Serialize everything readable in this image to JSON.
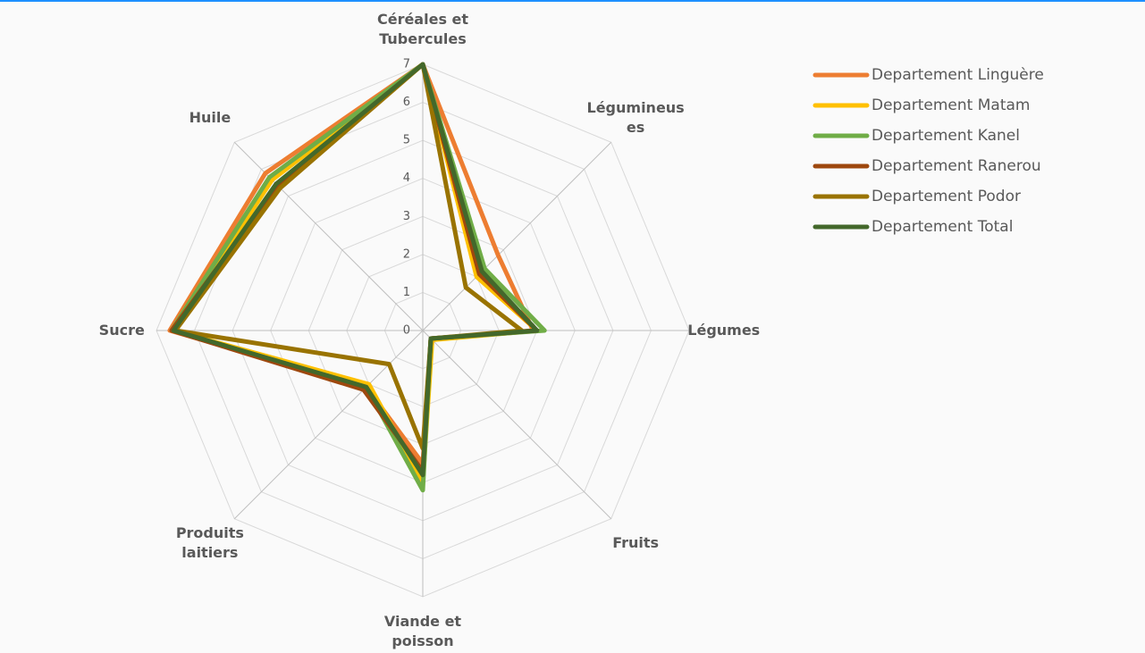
{
  "chart_data": {
    "type": "radar",
    "categories": [
      "Céréales et Tubercules",
      "Légumineuses",
      "Légumes",
      "Fruits",
      "Viande et poisson",
      "Produits laitiers",
      "Sucre",
      "Huile"
    ],
    "series": [
      {
        "name": "Departement Linguère",
        "color": "#ed7d31",
        "values": [
          7,
          2.8,
          2.9,
          0.3,
          3.5,
          2.1,
          6.65,
          5.85
        ]
      },
      {
        "name": "Departement Matam",
        "color": "#ffc000",
        "values": [
          7,
          2.0,
          3.0,
          0.35,
          4.0,
          2.0,
          6.55,
          5.6
        ]
      },
      {
        "name": "Departement Kanel",
        "color": "#70ad47",
        "values": [
          7,
          2.3,
          3.2,
          0.3,
          4.2,
          2.1,
          6.6,
          5.7
        ]
      },
      {
        "name": "Departement Ranerou",
        "color": "#9e480e",
        "values": [
          7,
          2.1,
          3.0,
          0.3,
          3.7,
          2.2,
          6.6,
          5.4
        ]
      },
      {
        "name": "Departement Podor",
        "color": "#997300",
        "values": [
          7,
          1.6,
          2.6,
          0.3,
          3.1,
          1.25,
          6.5,
          5.3
        ]
      },
      {
        "name": "Departement Total",
        "color": "#43682b",
        "values": [
          7,
          2.2,
          3.0,
          0.3,
          3.8,
          2.1,
          6.55,
          5.45
        ]
      }
    ],
    "ylim": [
      0,
      7
    ],
    "yticks": [
      0,
      1,
      2,
      3,
      4,
      5,
      6,
      7
    ],
    "grid": true,
    "legend": "right"
  }
}
